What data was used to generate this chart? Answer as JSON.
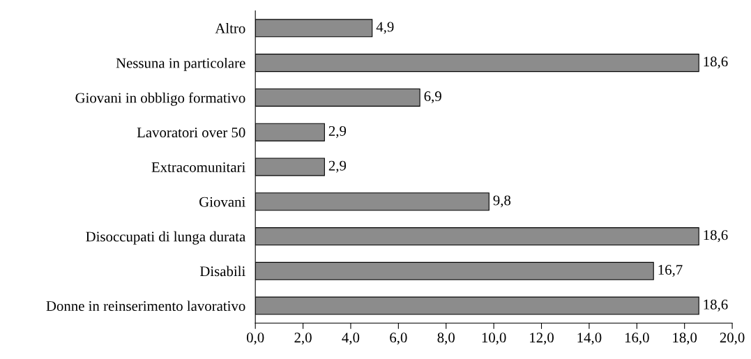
{
  "chart_data": {
    "type": "bar",
    "orientation": "horizontal",
    "categories": [
      "Altro",
      "Nessuna in particolare",
      "Giovani in obbligo formativo",
      "Lavoratori over 50",
      "Extracomunitari",
      "Giovani",
      "Disoccupati di lunga durata",
      "Disabili",
      "Donne in reinserimento lavorativo"
    ],
    "values": [
      4.9,
      18.6,
      6.9,
      2.9,
      2.9,
      9.8,
      18.6,
      16.7,
      18.6
    ],
    "value_labels": [
      "4,9",
      "18,6",
      "6,9",
      "2,9",
      "2,9",
      "9,8",
      "18,6",
      "16,7",
      "18,6"
    ],
    "color": "#8c8c8c",
    "xlim": [
      0,
      20
    ],
    "xticks": [
      {
        "value": 0,
        "label": "0,0"
      },
      {
        "value": 2,
        "label": "2,0"
      },
      {
        "value": 4,
        "label": "4,0"
      },
      {
        "value": 6,
        "label": "6,0"
      },
      {
        "value": 8,
        "label": "8,0"
      },
      {
        "value": 10,
        "label": "10,0"
      },
      {
        "value": 12,
        "label": "12,0"
      },
      {
        "value": 14,
        "label": "14,0"
      },
      {
        "value": 16,
        "label": "16,0"
      },
      {
        "value": 18,
        "label": "18,0"
      },
      {
        "value": 20,
        "label": "20,0"
      }
    ],
    "grid": false,
    "legend": false
  }
}
